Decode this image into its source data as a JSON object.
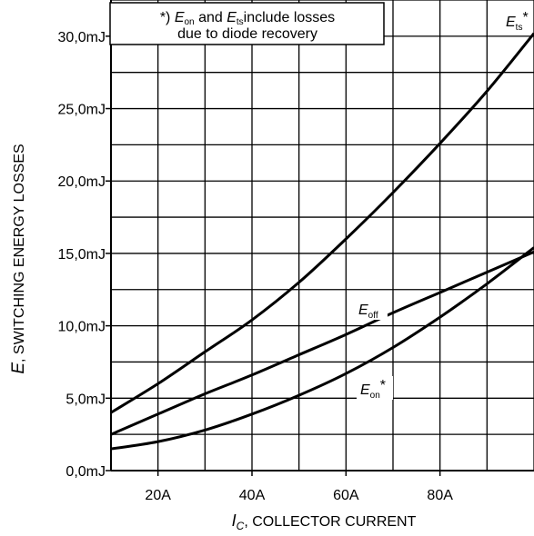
{
  "chart_data": {
    "type": "line",
    "x_ticks": [
      "20A",
      "40A",
      "60A",
      "80A"
    ],
    "x_tick_values": [
      20,
      40,
      60,
      80
    ],
    "y_ticks": [
      "0,0mJ",
      "5,0mJ",
      "10,0mJ",
      "15,0mJ",
      "20,0mJ",
      "25,0mJ",
      "30,0mJ"
    ],
    "y_tick_values": [
      0,
      5,
      10,
      15,
      20,
      25,
      30
    ],
    "xlim": [
      10,
      100
    ],
    "ylim": [
      0,
      32.5
    ],
    "grid": true,
    "xlabel": {
      "symbol": "I",
      "subscript": "C",
      "text": ", COLLECTOR CURRENT"
    },
    "ylabel": {
      "symbol": "E",
      "text": ", SWITCHING ENERGY LOSSES"
    },
    "note": {
      "prefix": "*) ",
      "e1": "E",
      "e1_sub": "on",
      "mid": " and ",
      "e2": "E",
      "e2_sub": "ts",
      "suffix": "include losses",
      "line2": "due to diode recovery"
    },
    "series": [
      {
        "name": "Ets*",
        "label_main": "E",
        "label_sub": "ts",
        "label_suffix": "*",
        "x": [
          10,
          20,
          30,
          40,
          50,
          60,
          70,
          80,
          90,
          100
        ],
        "y": [
          4.0,
          6.0,
          8.2,
          10.4,
          13.0,
          16.0,
          19.2,
          22.6,
          26.2,
          30.2
        ]
      },
      {
        "name": "Eoff",
        "label_main": "E",
        "label_sub": "off",
        "label_suffix": "",
        "x": [
          10,
          20,
          30,
          40,
          50,
          60,
          70,
          80,
          90,
          100
        ],
        "y": [
          2.5,
          3.9,
          5.3,
          6.6,
          8.0,
          9.4,
          10.9,
          12.3,
          13.7,
          15.1
        ]
      },
      {
        "name": "Eon*",
        "label_main": "E",
        "label_sub": "on",
        "label_suffix": "*",
        "x": [
          10,
          20,
          30,
          40,
          50,
          60,
          70,
          80,
          90,
          100
        ],
        "y": [
          1.5,
          2.0,
          2.8,
          3.9,
          5.2,
          6.7,
          8.5,
          10.6,
          12.9,
          15.4
        ]
      }
    ]
  },
  "colors": {
    "line": "#000000",
    "grid": "#000000",
    "background": "#ffffff"
  }
}
